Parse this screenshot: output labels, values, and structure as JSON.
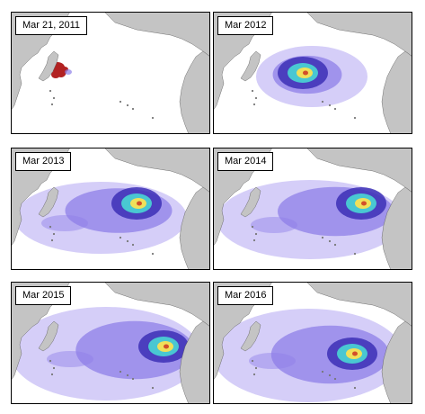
{
  "panels": [
    {
      "label": "Mar 21, 2011",
      "stage": 0
    },
    {
      "label": "Mar 2012",
      "stage": 1
    },
    {
      "label": "Mar 2013",
      "stage": 2
    },
    {
      "label": "Mar 2014",
      "stage": 3
    },
    {
      "label": "Mar 2015",
      "stage": 4
    },
    {
      "label": "Mar 2016",
      "stage": 5
    }
  ],
  "colors": {
    "land": "#c4c4c4",
    "ocean": "#ffffff",
    "border": "#000000",
    "plume_light": "#d5cef8",
    "plume_mid": "#8d7fe8",
    "plume_dark": "#3c2fb6",
    "plume_cyan": "#49c7d2",
    "plume_yellow": "#f0e05a",
    "plume_red": "#d24f2a",
    "origin_red": "#b22222"
  }
}
